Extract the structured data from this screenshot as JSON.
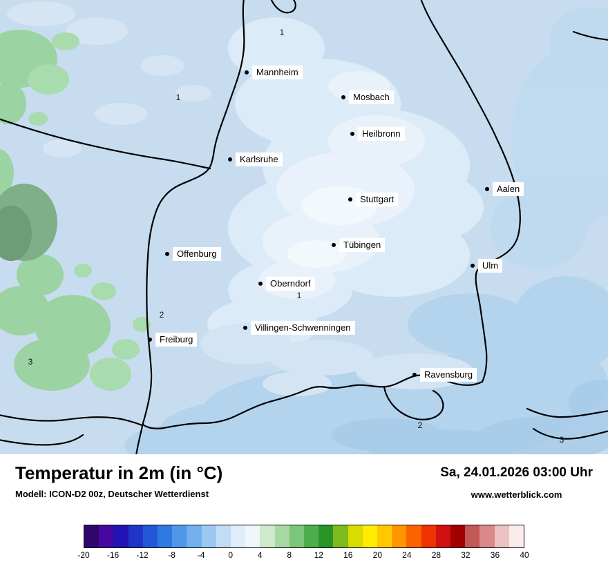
{
  "map": {
    "cities": [
      {
        "name": "Mannheim"
      },
      {
        "name": "Mosbach"
      },
      {
        "name": "Heilbronn"
      },
      {
        "name": "Karlsruhe"
      },
      {
        "name": "Stuttgart"
      },
      {
        "name": "Aalen"
      },
      {
        "name": "Tübingen"
      },
      {
        "name": "Offenburg"
      },
      {
        "name": "Ulm"
      },
      {
        "name": "Oberndorf"
      },
      {
        "name": "Villingen-Schwenningen"
      },
      {
        "name": "Freiburg"
      },
      {
        "name": "Ravensburg"
      }
    ],
    "temp_labels": [
      {
        "value": "1"
      },
      {
        "value": "1"
      },
      {
        "value": "2"
      },
      {
        "value": "1"
      },
      {
        "value": "3"
      },
      {
        "value": "2"
      },
      {
        "value": "3"
      }
    ],
    "colors": {
      "base": "#c8dcef",
      "light": "#dcebf8",
      "lighter": "#e9f2fb",
      "medium_south": "#b4d3ec",
      "green": "#9bd3a3",
      "dark_green": "#6d9c77",
      "border": "#000000"
    }
  },
  "footer": {
    "title": "Temperatur in 2m (in °C)",
    "model": "Modell: ICON-D2 00z, Deutscher Wetterdienst",
    "datetime": "Sa, 24.01.2026 03:00 Uhr",
    "website": "www.wetterblick.com"
  },
  "legend": {
    "unit": "°C",
    "ticks": [
      "-20",
      "-16",
      "-12",
      "-8",
      "-4",
      "0",
      "4",
      "8",
      "12",
      "16",
      "20",
      "24",
      "28",
      "32",
      "36",
      "40"
    ],
    "colors": [
      "#31076e",
      "#46089e",
      "#2214b4",
      "#1f35c8",
      "#2457d8",
      "#2f7ae2",
      "#4f97e8",
      "#74b0ee",
      "#9cc8f2",
      "#c2dcf6",
      "#dfeefa",
      "#f0f6fc",
      "#cfe9cc",
      "#a8d9a4",
      "#7cc67c",
      "#4cae4c",
      "#2a9527",
      "#7dbb1e",
      "#d8dc00",
      "#ffec00",
      "#ffc800",
      "#ff9600",
      "#fa6400",
      "#ee3200",
      "#d01010",
      "#a00000",
      "#c25858",
      "#d98989",
      "#ecc1c1",
      "#fbecec"
    ]
  }
}
